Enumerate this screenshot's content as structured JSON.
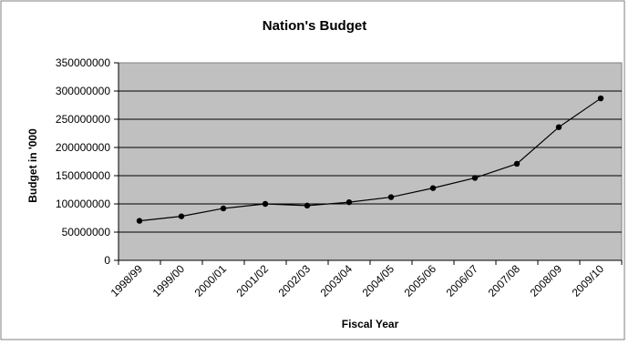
{
  "chart_data": {
    "type": "line",
    "title": "Nation's Budget",
    "xlabel": "Fiscal Year",
    "ylabel": "Budget in '000",
    "categories": [
      "1998/99",
      "1999/00",
      "2000/01",
      "2001/02",
      "2002/03",
      "2003/04",
      "2004/05",
      "2005/06",
      "2006/07",
      "2007/08",
      "2008/09",
      "2009/10"
    ],
    "series": [
      {
        "values": [
          70000000,
          78000000,
          92000000,
          100000000,
          97000000,
          103000000,
          112000000,
          128000000,
          146000000,
          171000000,
          236000000,
          287000000
        ]
      }
    ],
    "ylim": [
      0,
      350000000
    ],
    "yticks": [
      "0",
      "50000000",
      "100000000",
      "150000000",
      "200000000",
      "250000000",
      "300000000",
      "350000000"
    ],
    "grid": "horizontal",
    "legend": "none",
    "colors": {
      "plot_background": "#c0c0c0",
      "line": "#000000",
      "marker": "#000000",
      "gridline": "#000000",
      "border": "#808080"
    }
  }
}
